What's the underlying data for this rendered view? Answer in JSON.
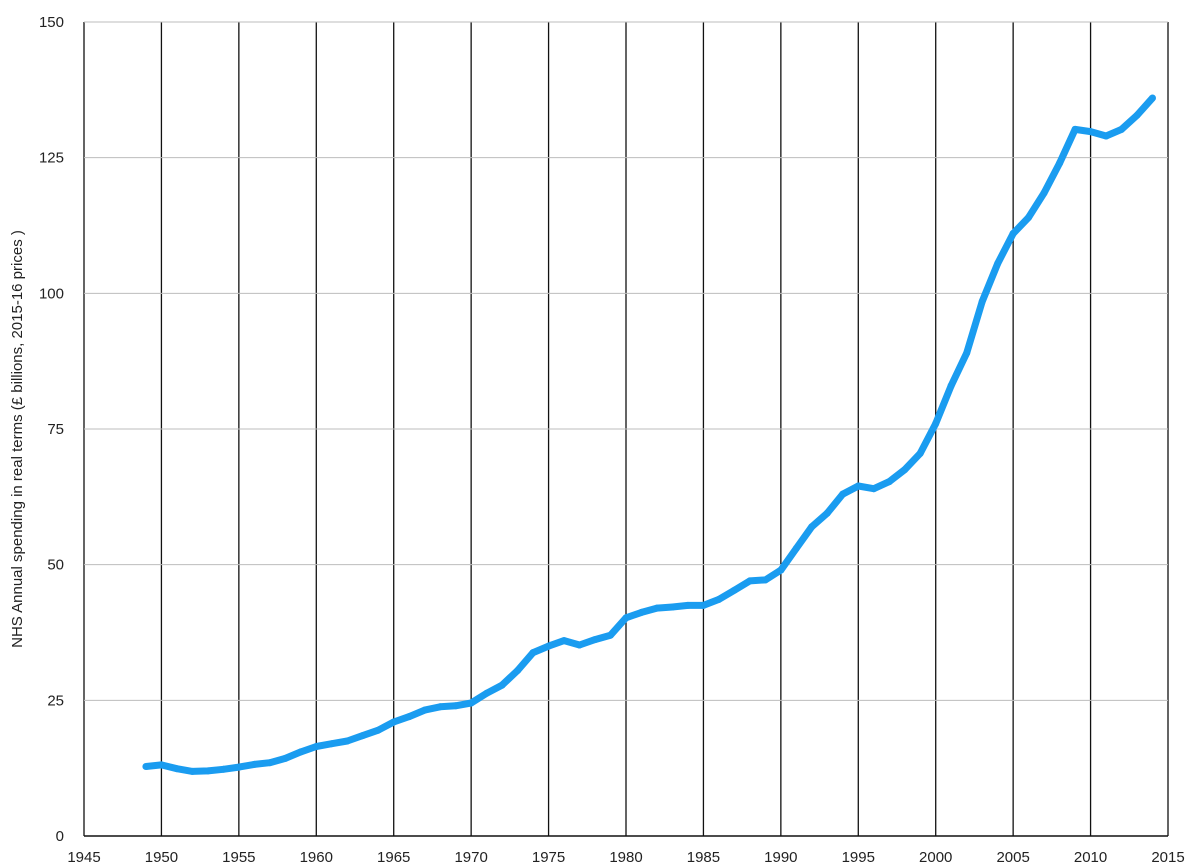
{
  "chart_data": {
    "type": "line",
    "title": "",
    "xlabel": "",
    "ylabel": "NHS Annual spending in real terms (£ billions, 2015-16 prices )",
    "xlim": [
      1945,
      2015
    ],
    "ylim": [
      0,
      150
    ],
    "x_ticks": [
      1945,
      1950,
      1955,
      1960,
      1965,
      1970,
      1975,
      1980,
      1985,
      1990,
      1995,
      2000,
      2005,
      2010,
      2015
    ],
    "y_ticks": [
      0,
      25,
      50,
      75,
      100,
      125,
      150
    ],
    "grid": {
      "vertical": true,
      "horizontal": true
    },
    "colors": {
      "line": "#1a9cf0",
      "vertical_grid": "#111111",
      "horizontal_grid": "#bdbdbd"
    },
    "series": [
      {
        "x": [
          1949,
          1950,
          1951,
          1952,
          1953,
          1954,
          1955,
          1956,
          1957,
          1958,
          1959,
          1960,
          1961,
          1962,
          1963,
          1964,
          1965,
          1966,
          1967,
          1968,
          1969,
          1970,
          1971,
          1972,
          1973,
          1974,
          1975,
          1976,
          1977,
          1978,
          1979,
          1980,
          1981,
          1982,
          1983,
          1984,
          1985,
          1986,
          1987,
          1988,
          1989,
          1990,
          1991,
          1992,
          1993,
          1994,
          1995,
          1996,
          1997,
          1998,
          1999,
          2000,
          2001,
          2002,
          2003,
          2004,
          2005,
          2006,
          2007,
          2008,
          2009,
          2010,
          2011,
          2012,
          2013,
          2014
        ],
        "y": [
          12.8,
          13.1,
          12.4,
          11.9,
          12.0,
          12.3,
          12.7,
          13.2,
          13.5,
          14.3,
          15.5,
          16.5,
          17.0,
          17.5,
          18.5,
          19.5,
          21.0,
          22.0,
          23.2,
          23.8,
          24.0,
          24.5,
          26.3,
          27.8,
          30.5,
          33.8,
          35.0,
          36.0,
          35.2,
          36.2,
          37.0,
          40.2,
          41.2,
          42.0,
          42.2,
          42.5,
          42.5,
          43.6,
          45.3,
          47.0,
          47.2,
          49.0,
          53.0,
          57.0,
          59.5,
          63.0,
          64.5,
          64.0,
          65.3,
          67.5,
          70.5,
          76.0,
          83.0,
          89.0,
          98.5,
          105.5,
          111.0,
          114.0,
          118.5,
          124.0,
          130.2,
          129.8,
          129.0,
          130.2,
          132.8,
          136.0
        ]
      }
    ]
  }
}
